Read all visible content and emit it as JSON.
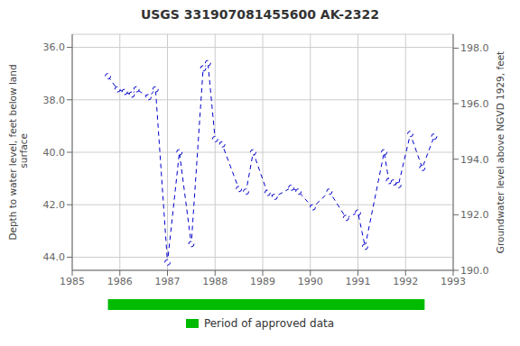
{
  "chart_data": {
    "type": "line",
    "title": "USGS 331907081455600 AK-2322",
    "ylabel": "Depth to water level, feet below land\n surface",
    "y2label": "Groundwater level above NGVD 1929, feet",
    "x": [
      1985.75,
      1985.95,
      1986.1,
      1986.25,
      1986.35,
      1986.6,
      1986.75,
      1987.0,
      1987.25,
      1987.5,
      1987.75,
      1987.85,
      1988.0,
      1988.15,
      1988.5,
      1988.65,
      1988.8,
      1989.1,
      1989.25,
      1989.6,
      1989.75,
      1990.05,
      1990.4,
      1990.75,
      1991.0,
      1991.15,
      1991.55,
      1991.65,
      1991.75,
      1991.85,
      1992.1,
      1992.35,
      1992.6
    ],
    "values": [
      37.1,
      37.6,
      37.7,
      37.8,
      37.6,
      37.9,
      37.6,
      44.2,
      40.0,
      43.5,
      36.8,
      36.6,
      39.5,
      39.7,
      41.4,
      41.5,
      40.0,
      41.55,
      41.7,
      41.35,
      41.5,
      42.1,
      41.5,
      42.5,
      42.3,
      43.6,
      40.0,
      41.1,
      41.15,
      41.25,
      39.3,
      40.6,
      39.4
    ],
    "color": "#0000cc",
    "line_style": "dashed",
    "marker": "circle",
    "xlim": [
      1985,
      1993
    ],
    "xticks": [
      1985,
      1986,
      1987,
      1988,
      1989,
      1990,
      1991,
      1992,
      1993
    ],
    "ylim": [
      44.5,
      35.5
    ],
    "yticks": [
      {
        "value": 36,
        "label": "36.0"
      },
      {
        "value": 38,
        "label": "38.0"
      },
      {
        "value": 40,
        "label": "40.0"
      },
      {
        "value": 42,
        "label": "42.0"
      },
      {
        "value": 44,
        "label": "44.0"
      }
    ],
    "y2lim": [
      190,
      198.5
    ],
    "y2ticks": [
      {
        "value": 190,
        "label": "190.0"
      },
      {
        "value": 192,
        "label": "192.0"
      },
      {
        "value": 194,
        "label": "194.0"
      },
      {
        "value": 196,
        "label": "196.0"
      },
      {
        "value": 198,
        "label": "198.0"
      }
    ],
    "grid": true,
    "legend": "bottom",
    "approved_period": {
      "name": "Period of approved data",
      "color": "#00bb00",
      "x": [
        1985.75,
        1992.4
      ]
    }
  }
}
